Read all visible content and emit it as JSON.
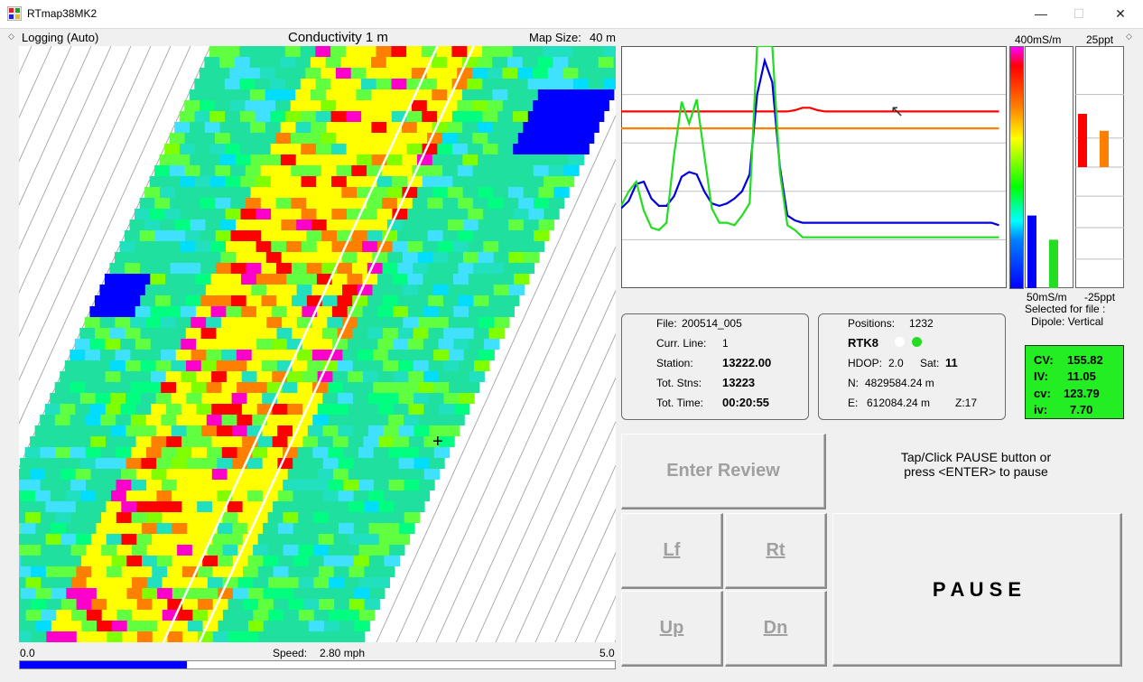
{
  "window": {
    "title": "RTmap38MK2",
    "minimize": "—",
    "maximize": "☐",
    "close": "✕"
  },
  "map": {
    "mode": "Logging (Auto)",
    "title": "Conductivity 1 m",
    "size_label": "Map Size:",
    "size_value": "40 m"
  },
  "speed": {
    "min": "0.0",
    "max": "5.0",
    "label": "Speed:",
    "value": "2.80 mph",
    "fraction": 0.28,
    "bar_color": "#0000ff"
  },
  "scales": {
    "cond_max": "400mS/m",
    "cond_min": "50mS/m",
    "ppt_max": "25ppt",
    "ppt_min": "-25ppt",
    "selected_label": "Selected for file :",
    "selected_value": "Dipole: Vertical"
  },
  "file_info": {
    "file_label": "File:",
    "file_value": "200514_005",
    "line_label": "Curr. Line:",
    "line_value": "1",
    "station_label": "Station:",
    "station_value": "13222.00",
    "tot_stns_label": "Tot. Stns:",
    "tot_stns_value": "13223",
    "tot_time_label": "Tot. Time:",
    "tot_time_value": "00:20:55"
  },
  "gps": {
    "positions_label": "Positions:",
    "positions_value": "1232",
    "mode": "RTK8",
    "hdop_label": "HDOP:",
    "hdop_value": "2.0",
    "sat_label": "Sat:",
    "sat_value": "11",
    "n_label": "N:",
    "n_value": "4829584.24 m",
    "e_label": "E:",
    "e_value": "612084.24 m",
    "z_value": "Z:17",
    "status_colors": [
      "#ffffff",
      "#22dd22"
    ]
  },
  "readout": {
    "CV_label": "CV:",
    "CV_value": "155.82",
    "IV_label": "IV:",
    "IV_value": "11.05",
    "cv_label": "cv:",
    "cv_value": "123.79",
    "iv_label": "iv:",
    "iv_value": "7.70",
    "bg_color": "#22ee22"
  },
  "controls": {
    "enter_review": "Enter Review",
    "lf": "Lf",
    "rt": "Rt",
    "up": "Up",
    "dn": "Dn",
    "pause": "P A U S E",
    "hint_line1": "Tap/Click PAUSE button or",
    "hint_line2": "press <ENTER> to pause"
  },
  "bars": {
    "cond_blue": 0.3,
    "cond_green": 0.2,
    "ppt_red": 0.22,
    "ppt_orange": 0.15
  },
  "chart_data": {
    "type": "line",
    "series": [
      {
        "color": "#ff0000",
        "values": [
          0.73,
          0.73,
          0.73,
          0.73,
          0.73,
          0.73,
          0.73,
          0.73,
          0.73,
          0.73,
          0.73,
          0.73,
          0.73,
          0.73,
          0.73,
          0.73,
          0.73,
          0.73,
          0.73,
          0.73,
          0.73,
          0.73,
          0.73,
          0.735,
          0.745,
          0.745,
          0.735,
          0.73,
          0.73,
          0.73,
          0.73,
          0.73,
          0.73,
          0.73,
          0.73,
          0.73,
          0.73,
          0.73,
          0.73,
          0.73,
          0.73,
          0.73,
          0.73,
          0.73,
          0.73,
          0.73,
          0.73,
          0.73,
          0.73,
          0.73,
          0.73
        ]
      },
      {
        "color": "#ff8000",
        "values": [
          0.66,
          0.66,
          0.66,
          0.66,
          0.66,
          0.66,
          0.66,
          0.66,
          0.66,
          0.66,
          0.66,
          0.66,
          0.66,
          0.66,
          0.66,
          0.66,
          0.66,
          0.66,
          0.66,
          0.66,
          0.66,
          0.66,
          0.66,
          0.66,
          0.66,
          0.66,
          0.66,
          0.66,
          0.66,
          0.66,
          0.66,
          0.66,
          0.66,
          0.66,
          0.66,
          0.66,
          0.66,
          0.66,
          0.66,
          0.66,
          0.66,
          0.66,
          0.66,
          0.66,
          0.66,
          0.66,
          0.66,
          0.66,
          0.66,
          0.66,
          0.66
        ]
      },
      {
        "color": "#0000dd",
        "values": [
          0.33,
          0.36,
          0.43,
          0.44,
          0.37,
          0.34,
          0.34,
          0.38,
          0.46,
          0.48,
          0.47,
          0.4,
          0.35,
          0.34,
          0.35,
          0.37,
          0.4,
          0.47,
          0.8,
          0.94,
          0.85,
          0.5,
          0.3,
          0.28,
          0.27,
          0.27,
          0.27,
          0.27,
          0.27,
          0.27,
          0.27,
          0.27,
          0.27,
          0.27,
          0.27,
          0.27,
          0.27,
          0.27,
          0.27,
          0.27,
          0.27,
          0.27,
          0.27,
          0.27,
          0.27,
          0.27,
          0.27,
          0.27,
          0.27,
          0.27,
          0.26
        ]
      },
      {
        "color": "#22dd22",
        "values": [
          0.34,
          0.4,
          0.44,
          0.32,
          0.25,
          0.24,
          0.27,
          0.55,
          0.77,
          0.68,
          0.78,
          0.55,
          0.33,
          0.27,
          0.27,
          0.26,
          0.3,
          0.35,
          1.0,
          1.0,
          1.0,
          0.48,
          0.26,
          0.24,
          0.21,
          0.21,
          0.21,
          0.21,
          0.21,
          0.21,
          0.21,
          0.21,
          0.21,
          0.21,
          0.21,
          0.21,
          0.21,
          0.21,
          0.21,
          0.21,
          0.21,
          0.21,
          0.21,
          0.21,
          0.21,
          0.21,
          0.21,
          0.21,
          0.21,
          0.21,
          0.21
        ]
      }
    ],
    "grid": true
  }
}
